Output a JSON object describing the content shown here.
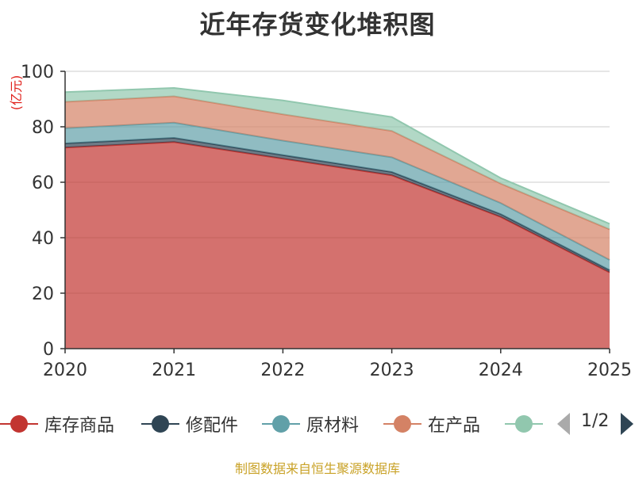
{
  "page": {
    "title": "近年存货变化堆积图",
    "source_note": "制图数据来自恒生聚源数据库",
    "pager": "1/2"
  },
  "chart_data": {
    "type": "area",
    "stacked": true,
    "title": "近年存货变化堆积图",
    "ylabel": "(亿元)",
    "xlabel": "",
    "x": [
      "2020",
      "2021",
      "2022",
      "2023",
      "2024",
      "2025"
    ],
    "ylim": [
      0,
      100
    ],
    "yticks": [
      0,
      20,
      40,
      60,
      80,
      100
    ],
    "grid": true,
    "legend_position": "bottom",
    "series": [
      {
        "name": "库存商品",
        "color": "#c23531",
        "values": [
          72.5,
          74.5,
          68.5,
          62.5,
          47.5,
          27.5
        ]
      },
      {
        "name": "修配件",
        "color": "#2f4554",
        "values": [
          1.5,
          1.5,
          1.3,
          1.2,
          1.0,
          0.8
        ]
      },
      {
        "name": "原材料",
        "color": "#61a0a8",
        "values": [
          5.5,
          5.5,
          5.2,
          5.3,
          4.0,
          3.7
        ]
      },
      {
        "name": "在产品",
        "color": "#d48265",
        "values": [
          9.5,
          9.5,
          9.5,
          9.5,
          7.0,
          11.0
        ]
      },
      {
        "name": "",
        "color": "#91c7ae",
        "values": [
          3.5,
          3.0,
          5.0,
          5.0,
          2.0,
          2.0
        ]
      }
    ]
  }
}
